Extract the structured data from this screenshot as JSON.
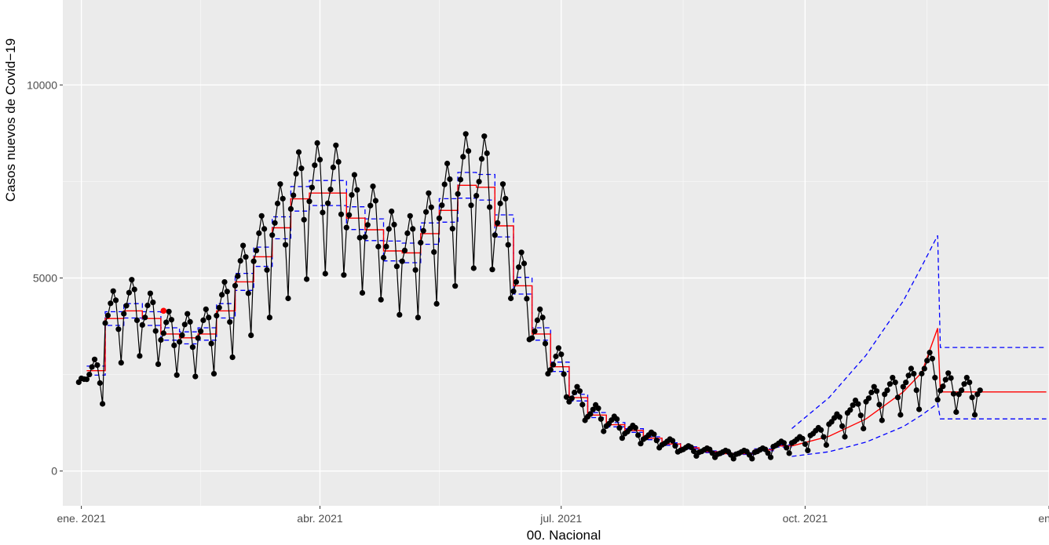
{
  "chart_data": {
    "type": "line",
    "title": "",
    "xlabel": "00. Nacional",
    "ylabel": "Casos nuevos de Covid−19",
    "x_axis": {
      "type": "date",
      "range": [
        "2020-12-25",
        "2022-01-01"
      ],
      "ticks": [
        {
          "date": "2021-01-01",
          "label": "ene. 2021"
        },
        {
          "date": "2021-04-01",
          "label": "abr. 2021"
        },
        {
          "date": "2021-07-01",
          "label": "jul. 2021"
        },
        {
          "date": "2021-10-01",
          "label": "oct. 2021"
        },
        {
          "date": "2022-01-01",
          "label": "ene."
        }
      ],
      "minor_ticks": [
        "2021-02-15",
        "2021-05-16",
        "2021-08-16",
        "2021-11-16"
      ]
    },
    "y_axis": {
      "range": [
        -900,
        12200
      ],
      "ticks": [
        {
          "value": 0,
          "label": "0"
        },
        {
          "value": 5000,
          "label": "5000"
        },
        {
          "value": 10000,
          "label": "10000"
        }
      ],
      "minor_ticks": [
        2500,
        7500
      ]
    },
    "grid": true,
    "panel_background": "#ebebeb",
    "colors": {
      "observed": "#000000",
      "fitted": "#ff0000",
      "bounds": "#0000ff",
      "grid_major": "#ffffff"
    },
    "observed_daily": {
      "start_date": "2021-01-03",
      "weekly_means": [
        2450,
        3950,
        4200,
        3900,
        3500,
        3450,
        3550,
        4150,
        4950,
        5600,
        6300,
        7000,
        7200,
        7150,
        6500,
        6250,
        5700,
        5600,
        6100,
        6750,
        7400,
        7350,
        6300,
        4800,
        3550,
        2700,
        1850,
        1450,
        1200,
        1000,
        850,
        700,
        550,
        500,
        450,
        450,
        500,
        650,
        750,
        950,
        1250,
        1550,
        1850,
        2050,
        2250,
        2600,
        2150,
        2050
      ],
      "weekly_weekday_pattern": [
        0.97,
        1.02,
        1.1,
        1.18,
        1.12,
        0.93,
        0.71
      ],
      "last_date": "2021-12-06"
    },
    "fitted_steps": {
      "start_date": "2021-01-03",
      "values": [
        2600,
        3950,
        4150,
        3950,
        3550,
        3450,
        3550,
        4150,
        4900,
        5550,
        6300,
        7050,
        7200,
        7200,
        6550,
        6250,
        5700,
        5650,
        6150,
        6750,
        7400,
        7350,
        6350,
        4800,
        3550,
        2700,
        1900,
        1450,
        1200,
        1050,
        850,
        700,
        600,
        500,
        450,
        450,
        550,
        650
      ]
    },
    "fitted_projection": {
      "x": [
        "2021-09-26",
        "2021-10-10",
        "2021-10-24",
        "2021-11-07",
        "2021-11-14",
        "2021-11-20",
        "2021-11-21",
        "2021-12-31"
      ],
      "values": [
        650,
        900,
        1350,
        2050,
        2550,
        3700,
        2050,
        2050
      ]
    },
    "upper_bound": {
      "x": [
        "2021-09-26",
        "2021-10-10",
        "2021-10-24",
        "2021-11-07",
        "2021-11-14",
        "2021-11-20",
        "2021-11-21",
        "2021-12-31"
      ],
      "values": [
        1100,
        1900,
        3000,
        4400,
        5300,
        6100,
        3200,
        3200
      ]
    },
    "lower_bound": {
      "x": [
        "2021-09-26",
        "2021-10-10",
        "2021-10-24",
        "2021-11-07",
        "2021-11-14",
        "2021-11-20",
        "2021-11-21",
        "2021-12-31"
      ],
      "values": [
        380,
        500,
        750,
        1150,
        1450,
        1750,
        1350,
        1350
      ]
    },
    "highlighted_point": {
      "x": "2021-02-01",
      "y": 4150,
      "color": "#ff0000"
    }
  }
}
